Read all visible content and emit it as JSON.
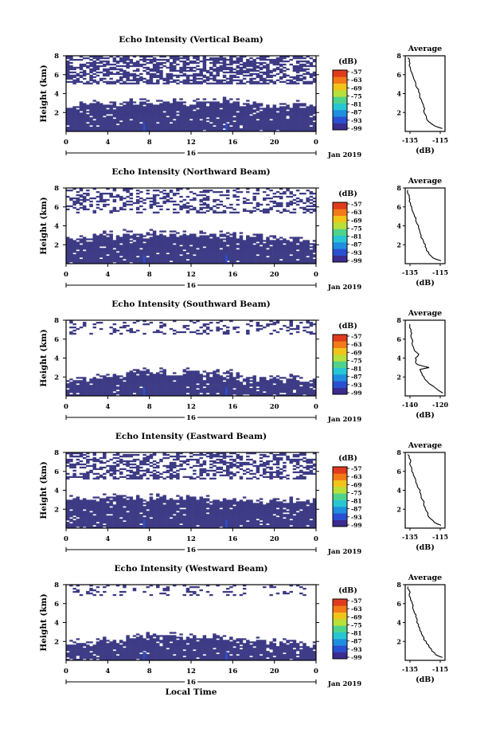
{
  "figure": {
    "xlabel": "Local Time",
    "date_label": "Jan 2019",
    "day_label": "16",
    "colorbar_unit": "(dB)",
    "colorbar_ticks": [
      "-57",
      "-63",
      "-69",
      "-75",
      "-81",
      "-87",
      "-93",
      "-99"
    ],
    "colorbar_colors": [
      "#3b2c8f",
      "#2a4fd0",
      "#1f8ee0",
      "#28c6d2",
      "#4fd38c",
      "#b8df3a",
      "#f2c419",
      "#f27a18",
      "#e03a1c"
    ],
    "echo_color": "#3d3b85",
    "profile_title": "Average",
    "profile_xlabel": "(dB)"
  },
  "chart_data": [
    {
      "type": "heatmap",
      "title": "Echo Intensity (Vertical Beam)",
      "xlabel": "Local Time",
      "ylabel": "Height (km)",
      "xlim": [
        0,
        24
      ],
      "ylim": [
        0,
        8
      ],
      "xticks": [
        "0",
        "4",
        "8",
        "12",
        "16",
        "20",
        "0"
      ],
      "yticks": [
        "2",
        "4",
        "6",
        "8"
      ],
      "colorbar": {
        "label": "(dB)",
        "range": [
          -99,
          -57
        ]
      },
      "low_layer_top_km": [
        2.4,
        2.5,
        2.6,
        2.8,
        2.9,
        2.9,
        3.0,
        2.9,
        3.0,
        2.9,
        3.0,
        3.0,
        3.0,
        3.0,
        3.0,
        3.0,
        3.0,
        2.8,
        2.8,
        2.7,
        2.6,
        2.6,
        2.8,
        2.8,
        2.6
      ],
      "upper_echo_km": [
        5.0,
        8.0
      ],
      "upper_echo_density": 0.65,
      "profile": {
        "title": "Average",
        "xlabel": "(dB)",
        "xticks": [
          "-135",
          "-115"
        ],
        "xlim": [
          -140,
          -110
        ],
        "yticks": [
          "2",
          "4",
          "6",
          "8"
        ],
        "ylim": [
          0,
          8
        ],
        "height_km": [
          0.3,
          0.6,
          1.0,
          1.4,
          1.8,
          2.2,
          2.6,
          3.0,
          3.4,
          3.8,
          4.2,
          4.6,
          5.0,
          5.4,
          5.8,
          6.2,
          6.6,
          7.0,
          7.4,
          7.8
        ],
        "value_db": [
          -112,
          -118,
          -122,
          -124,
          -125,
          -126,
          -126,
          -127,
          -128,
          -129,
          -130,
          -131,
          -132,
          -133,
          -134,
          -135,
          -136,
          -137,
          -137,
          -138
        ]
      }
    },
    {
      "type": "heatmap",
      "title": "Echo Intensity (Northward Beam)",
      "xlabel": "Local Time",
      "ylabel": "Height (km)",
      "xlim": [
        0,
        24
      ],
      "ylim": [
        0,
        8
      ],
      "xticks": [
        "0",
        "4",
        "8",
        "12",
        "16",
        "20",
        "0"
      ],
      "yticks": [
        "2",
        "4",
        "6",
        "8"
      ],
      "colorbar": {
        "label": "(dB)",
        "range": [
          -99,
          -57
        ]
      },
      "low_layer_top_km": [
        2.6,
        2.7,
        2.8,
        2.9,
        3.0,
        3.0,
        3.0,
        3.0,
        3.0,
        3.0,
        3.0,
        3.0,
        3.0,
        3.0,
        2.9,
        2.9,
        2.8,
        2.8,
        2.7,
        2.6,
        2.6,
        2.5,
        2.6,
        2.4,
        2.3
      ],
      "upper_echo_km": [
        5.4,
        8.0
      ],
      "upper_echo_density": 0.35,
      "profile": {
        "title": "Average",
        "xlabel": "(dB)",
        "xticks": [
          "-135",
          "-115"
        ],
        "xlim": [
          -140,
          -110
        ],
        "yticks": [
          "2",
          "4",
          "6",
          "8"
        ],
        "ylim": [
          0,
          8
        ],
        "height_km": [
          0.3,
          0.6,
          1.0,
          1.4,
          1.8,
          2.2,
          2.6,
          3.0,
          3.4,
          3.8,
          4.2,
          4.6,
          5.0,
          5.4,
          5.8,
          6.2,
          6.6,
          7.0,
          7.4,
          7.8
        ],
        "value_db": [
          -113,
          -119,
          -122,
          -124,
          -125,
          -126,
          -127,
          -128,
          -129,
          -130,
          -131,
          -132,
          -133,
          -134,
          -135,
          -136,
          -137,
          -137,
          -138,
          -138
        ]
      }
    },
    {
      "type": "heatmap",
      "title": "Echo Intensity (Southward Beam)",
      "xlabel": "Local Time",
      "ylabel": "Height (km)",
      "xlim": [
        0,
        24
      ],
      "ylim": [
        0,
        8
      ],
      "xticks": [
        "0",
        "4",
        "8",
        "12",
        "16",
        "20",
        "0"
      ],
      "yticks": [
        "2",
        "4",
        "6",
        "8"
      ],
      "colorbar": {
        "label": "(dB)",
        "range": [
          -99,
          -57
        ]
      },
      "low_layer_top_km": [
        1.4,
        1.5,
        1.6,
        1.8,
        2.0,
        2.2,
        2.4,
        2.5,
        2.5,
        2.4,
        2.3,
        2.3,
        2.4,
        2.4,
        2.3,
        2.3,
        2.2,
        2.0,
        1.9,
        1.8,
        1.7,
        1.6,
        1.7,
        1.5,
        1.4
      ],
      "upper_echo_km": [
        6.5,
        8.0
      ],
      "upper_echo_density": 0.25,
      "profile": {
        "title": "Average",
        "xlabel": "(dB)",
        "xticks": [
          "-140",
          "-120"
        ],
        "xlim": [
          -145,
          -110
        ],
        "yticks": [
          "2",
          "4",
          "6",
          "8"
        ],
        "ylim": [
          0,
          8
        ],
        "height_km": [
          0.3,
          0.8,
          1.3,
          1.8,
          2.2,
          2.5,
          2.8,
          3.0,
          3.3,
          3.6,
          4.0,
          4.4,
          4.8,
          5.2,
          5.6,
          6.0,
          6.4,
          6.8,
          7.2,
          7.6
        ],
        "value_db": [
          -112,
          -118,
          -124,
          -128,
          -130,
          -131,
          -132,
          -124,
          -134,
          -136,
          -136,
          -133,
          -137,
          -138,
          -139,
          -139,
          -140,
          -140,
          -141,
          -141
        ]
      }
    },
    {
      "type": "heatmap",
      "title": "Echo Intensity (Eastward Beam)",
      "xlabel": "Local Time",
      "ylabel": "Height (km)",
      "xlim": [
        0,
        24
      ],
      "ylim": [
        0,
        8
      ],
      "xticks": [
        "0",
        "4",
        "8",
        "12",
        "16",
        "20",
        "0"
      ],
      "yticks": [
        "2",
        "4",
        "6",
        "8"
      ],
      "colorbar": {
        "label": "(dB)",
        "range": [
          -99,
          -57
        ]
      },
      "low_layer_top_km": [
        2.8,
        2.9,
        3.0,
        3.0,
        3.1,
        3.2,
        3.2,
        3.2,
        3.2,
        3.2,
        3.1,
        3.1,
        3.1,
        3.0,
        3.0,
        2.9,
        2.8,
        2.7,
        2.6,
        2.6,
        2.7,
        2.8,
        2.9,
        2.7,
        2.5
      ],
      "upper_echo_km": [
        5.2,
        8.0
      ],
      "upper_echo_density": 0.5,
      "profile": {
        "title": "Average",
        "xlabel": "(dB)",
        "xticks": [
          "-135",
          "-115"
        ],
        "xlim": [
          -140,
          -110
        ],
        "yticks": [
          "2",
          "4",
          "6",
          "8"
        ],
        "ylim": [
          0,
          8
        ],
        "height_km": [
          0.3,
          0.6,
          1.0,
          1.4,
          1.8,
          2.2,
          2.6,
          3.0,
          3.4,
          3.8,
          4.2,
          4.6,
          5.0,
          5.4,
          5.8,
          6.2,
          6.6,
          7.0,
          7.4,
          7.8
        ],
        "value_db": [
          -113,
          -118,
          -121,
          -123,
          -124,
          -125,
          -126,
          -127,
          -128,
          -129,
          -130,
          -131,
          -132,
          -133,
          -134,
          -135,
          -136,
          -136,
          -137,
          -138
        ]
      }
    },
    {
      "type": "heatmap",
      "title": "Echo Intensity (Westward Beam)",
      "xlabel": "Local Time",
      "ylabel": "Height (km)",
      "xlim": [
        0,
        24
      ],
      "ylim": [
        0,
        8
      ],
      "xticks": [
        "0",
        "4",
        "8",
        "12",
        "16",
        "20",
        "0"
      ],
      "yticks": [
        "2",
        "4",
        "6",
        "8"
      ],
      "colorbar": {
        "label": "(dB)",
        "range": [
          -99,
          -57
        ]
      },
      "low_layer_top_km": [
        1.6,
        1.7,
        1.8,
        1.9,
        2.0,
        2.1,
        2.2,
        2.4,
        2.5,
        2.5,
        2.5,
        2.3,
        2.2,
        2.2,
        2.3,
        2.4,
        2.2,
        2.0,
        1.9,
        1.8,
        1.8,
        1.7,
        1.7,
        1.6,
        1.5
      ],
      "upper_echo_km": [
        6.8,
        8.0
      ],
      "upper_echo_density": 0.18,
      "profile": {
        "title": "Average",
        "xlabel": "(dB)",
        "xticks": [
          "-135",
          "-115"
        ],
        "xlim": [
          -140,
          -110
        ],
        "yticks": [
          "2",
          "4",
          "6",
          "8"
        ],
        "ylim": [
          0,
          8
        ],
        "height_km": [
          0.3,
          0.6,
          1.0,
          1.4,
          1.8,
          2.2,
          2.6,
          3.0,
          3.4,
          3.8,
          4.2,
          4.6,
          5.0,
          5.4,
          5.8,
          6.2,
          6.6,
          7.0,
          7.4,
          7.8
        ],
        "value_db": [
          -112,
          -117,
          -120,
          -122,
          -124,
          -126,
          -127,
          -128,
          -129,
          -130,
          -131,
          -132,
          -133,
          -134,
          -134,
          -135,
          -136,
          -137,
          -137,
          -138
        ]
      }
    }
  ]
}
